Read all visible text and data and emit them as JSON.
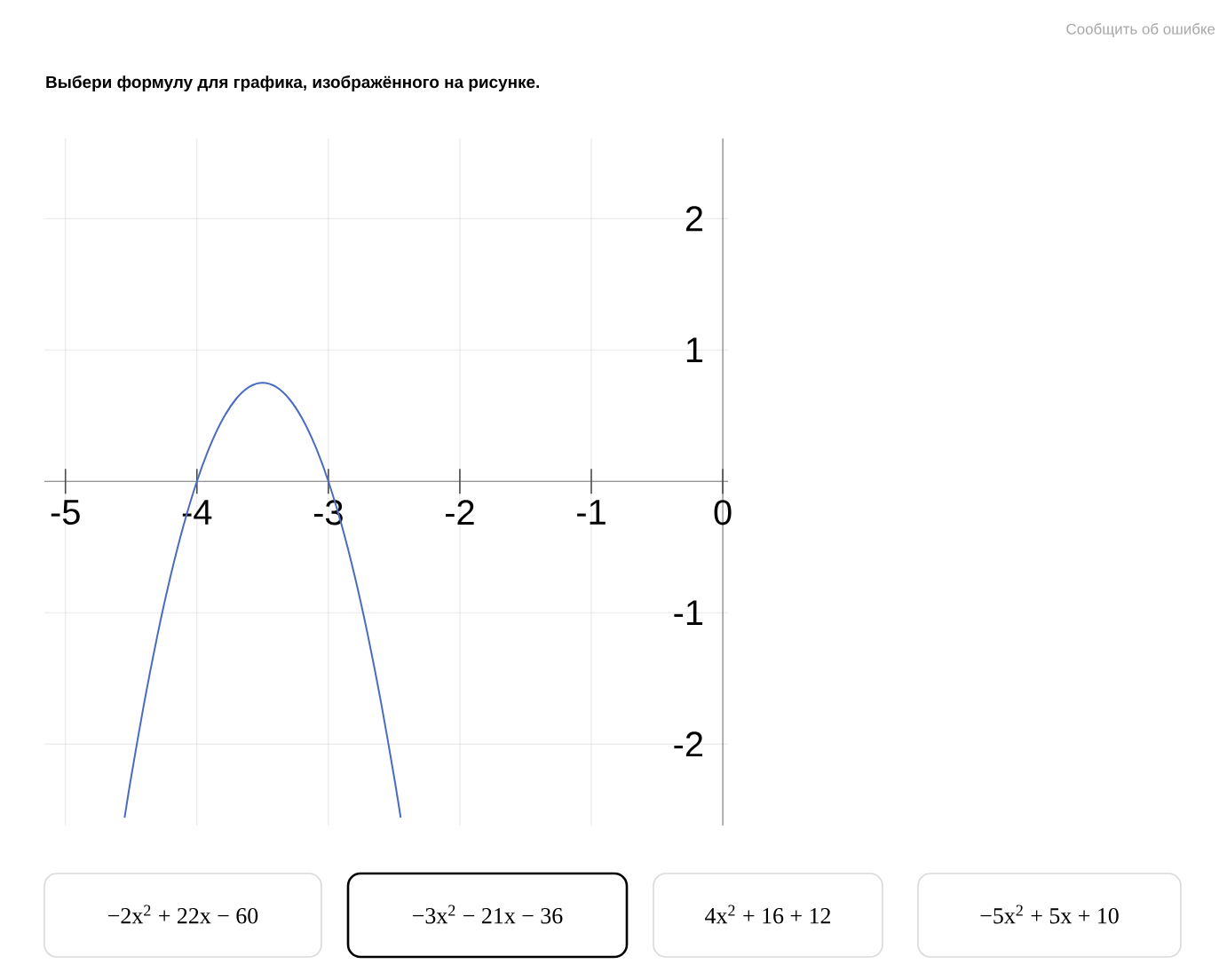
{
  "chart_data": {
    "type": "line",
    "title": "Выбери формулу для графика, изображённого на рисунке.",
    "x": [
      -4.55,
      -4.5,
      -4.4,
      -4.3,
      -4.2,
      -4.1,
      -4.0,
      -3.9,
      -3.8,
      -3.7,
      -3.6,
      -3.5,
      -3.4,
      -3.3,
      -3.2,
      -3.1,
      -3.0,
      -2.9,
      -2.8,
      -2.7,
      -2.6,
      -2.5,
      -2.45
    ],
    "series": [
      {
        "color": "#4a6cc0",
        "values": [
          -2.56,
          -2.25,
          -1.68,
          -1.17,
          -0.72,
          -0.33,
          0,
          0.27,
          0.48,
          0.63,
          0.72,
          0.75,
          0.72,
          0.63,
          0.48,
          0.27,
          0,
          -0.33,
          -0.72,
          -1.17,
          -1.68,
          -2.25,
          -2.56
        ]
      }
    ],
    "xlim": [
      -5.16,
      0.04
    ],
    "ylim": [
      -2.62,
      2.61
    ],
    "xticks": [
      -5,
      -4,
      -3,
      -2,
      -1,
      0
    ],
    "yticks": [
      -2,
      -1,
      1,
      2
    ],
    "grid": true,
    "marker": "none",
    "line_style": "solid",
    "annotations": [
      "Сообщить об ошибке",
      "−2x$^{2}$ + 22x − 60",
      "−3x$^{2}$ − 21x − 36",
      "4x$^{2}$ + 16 + 12",
      "−5x$^{2}$ + 5x + 10"
    ]
  }
}
